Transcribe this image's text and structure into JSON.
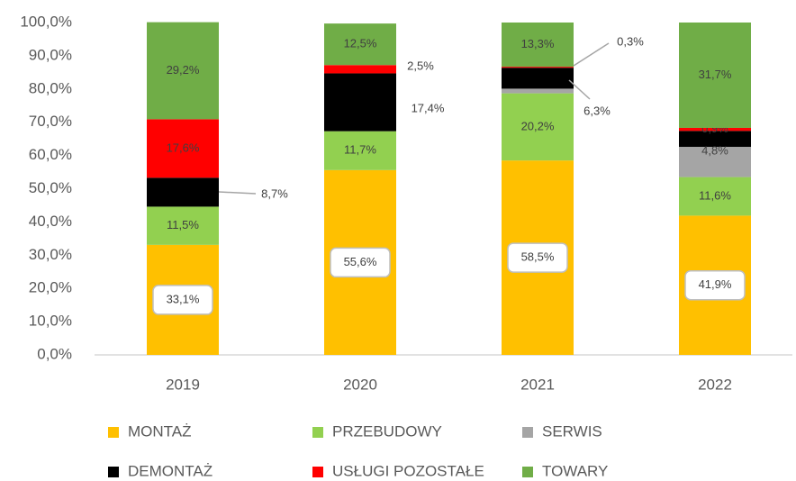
{
  "chart_data": {
    "type": "stacked-bar",
    "categories": [
      "2019",
      "2020",
      "2021",
      "2022"
    ],
    "series": [
      {
        "name": "MONTAŻ",
        "color": "#ffc000",
        "values": [
          33.1,
          55.6,
          58.5,
          41.9
        ],
        "value_labels": [
          "33,1%",
          "55,6%",
          "58,5%",
          "41,9%"
        ]
      },
      {
        "name": "PRZEBUDOWY",
        "color": "#92d050",
        "values": [
          11.5,
          11.7,
          20.2,
          11.6
        ],
        "value_labels": [
          "11,5%",
          "11,7%",
          "20,2%",
          "11,6%"
        ]
      },
      {
        "name": "SERWIS",
        "color": "#a5a5a5",
        "values": [
          0,
          0,
          1.4,
          9.1
        ],
        "value_labels": [
          null,
          null,
          null,
          null
        ]
      },
      {
        "name": "DEMONTAŻ",
        "color": "#000000",
        "values": [
          8.7,
          17.4,
          6.3,
          4.8
        ],
        "value_labels": [
          "8,7%",
          "17,4%",
          "6,3%",
          "4,8%"
        ]
      },
      {
        "name": "USŁUGI POZOSTAŁE",
        "color": "#ff0000",
        "values": [
          17.6,
          2.5,
          0.3,
          0.9
        ],
        "value_labels": [
          "17,6%",
          "2,5%",
          "0,3%",
          "0,9%"
        ]
      },
      {
        "name": "TOWARY",
        "color": "#70ad47",
        "values": [
          29.2,
          12.5,
          13.3,
          31.7
        ],
        "value_labels": [
          "29,2%",
          "12,5%",
          "13,3%",
          "31,7%"
        ]
      }
    ],
    "ylim": [
      0,
      100
    ],
    "yticks": [
      {
        "value": 0,
        "label": "0,0%"
      },
      {
        "value": 10,
        "label": "10,0%"
      },
      {
        "value": 20,
        "label": "20,0%"
      },
      {
        "value": 30,
        "label": "30,0%"
      },
      {
        "value": 40,
        "label": "40,0%"
      },
      {
        "value": 50,
        "label": "50,0%"
      },
      {
        "value": 60,
        "label": "60,0%"
      },
      {
        "value": 70,
        "label": "70,0%"
      },
      {
        "value": 80,
        "label": "80,0%"
      },
      {
        "value": 90,
        "label": "90,0%"
      },
      {
        "value": 100,
        "label": "100,0%"
      }
    ],
    "legend": "bottom"
  }
}
